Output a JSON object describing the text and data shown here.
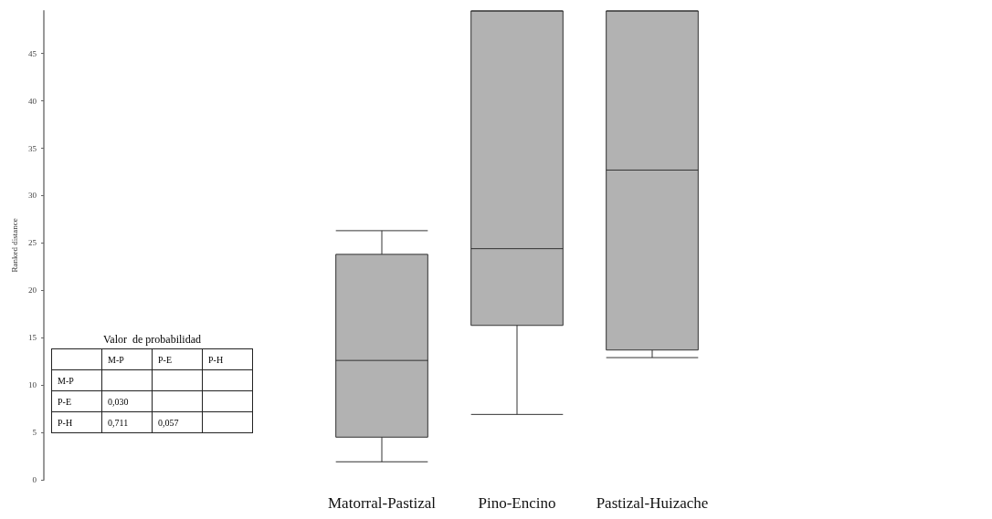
{
  "chart_data": {
    "type": "box",
    "ylabel": "Ranked distance",
    "categories": [
      null,
      null,
      "Matorral-Pastizal",
      "Pino-Encino",
      "Pastizal-Huizache",
      null,
      null
    ],
    "boxes": [
      null,
      null,
      {
        "low": 1.9,
        "q1": 4.5,
        "median": 12.6,
        "q3": 23.8,
        "high": 26.3
      },
      {
        "low": 6.9,
        "q1": 16.3,
        "median": 24.4,
        "q3": 49.5,
        "high": 49.5
      },
      {
        "low": 12.9,
        "q1": 13.7,
        "median": 32.7,
        "q3": 49.5,
        "high": 49.5
      },
      null,
      null
    ],
    "color": "#b2b2b2",
    "ylim": [
      0,
      49.5
    ],
    "yticks": [
      0,
      5,
      10,
      15,
      20,
      25,
      30,
      35,
      40,
      45
    ],
    "grid": false,
    "annotations": [
      "Valor  de probabilidad",
      "M-P",
      "P-E",
      "P-H",
      "M-P",
      "P-E",
      "0,030",
      "P-H",
      "0,711",
      "0,057"
    ]
  }
}
